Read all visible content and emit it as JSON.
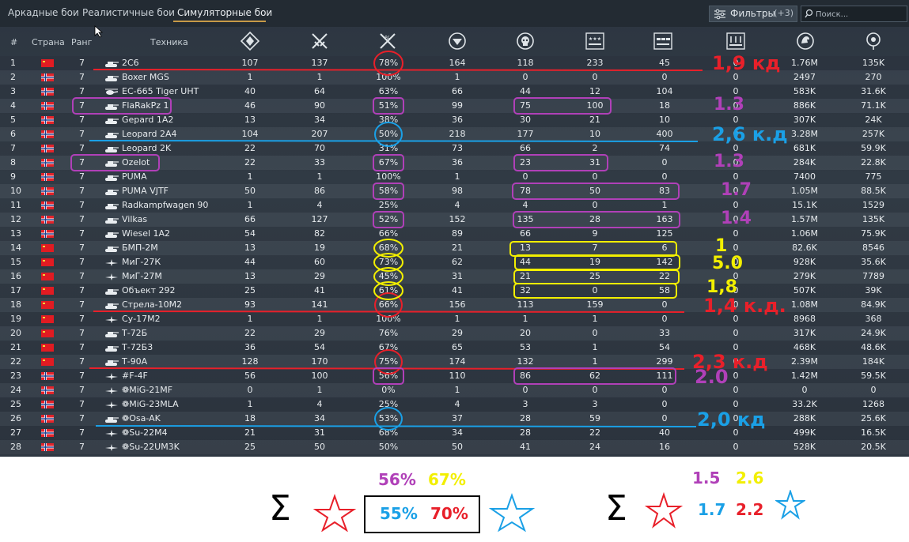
{
  "tabs": [
    {
      "label": "Аркадные бои",
      "active": false
    },
    {
      "label": "Реалистичные бои",
      "active": false
    },
    {
      "label": "Симуляторные бои",
      "active": true
    }
  ],
  "filter": {
    "label": "Фильтры",
    "count": "(+3)"
  },
  "search": {
    "placeholder": "Поиск..."
  },
  "columns": {
    "num": "#",
    "country": "Страна",
    "rank": "Ранг",
    "vehicle": "Техника"
  },
  "stat_icons": [
    "battles-icon",
    "victories-icon",
    "win-rate-icon",
    "respawns-icon",
    "deaths-icon",
    "air-kills-icon",
    "ground-kills-icon",
    "naval-kills-icon",
    "experience-icon",
    "silver-lions-icon"
  ],
  "colors": {
    "red": "#e8202a",
    "blue": "#1aa0e6",
    "purple": "#b040b8",
    "yellow": "#f2ef00",
    "flag_red": "#e11b22",
    "flag_nor": "#e3242b"
  },
  "rows": [
    {
      "n": "1",
      "flag": "ussr",
      "rank": "7",
      "type": "tank",
      "name": "2С6",
      "v": [
        "107",
        "137",
        "78%",
        "164",
        "118",
        "233",
        "45",
        "0",
        "1.76M",
        "135K"
      ]
    },
    {
      "n": "2",
      "flag": "nor",
      "rank": "7",
      "type": "tank",
      "name": "Boxer MGS",
      "v": [
        "1",
        "1",
        "100%",
        "1",
        "0",
        "0",
        "0",
        "0",
        "2497",
        "270"
      ]
    },
    {
      "n": "3",
      "flag": "nor",
      "rank": "7",
      "type": "heli",
      "name": "EC-665 Tiger UHT",
      "v": [
        "40",
        "64",
        "63%",
        "66",
        "44",
        "12",
        "104",
        "0",
        "583K",
        "31.6K"
      ]
    },
    {
      "n": "4",
      "flag": "nor",
      "rank": "7",
      "type": "tank",
      "name": "FlaRakPz 1",
      "v": [
        "46",
        "90",
        "51%",
        "99",
        "75",
        "100",
        "18",
        "0",
        "886K",
        "71.1K"
      ]
    },
    {
      "n": "5",
      "flag": "nor",
      "rank": "7",
      "type": "tank",
      "name": "Gepard 1A2",
      "v": [
        "13",
        "34",
        "38%",
        "36",
        "30",
        "21",
        "10",
        "0",
        "307K",
        "24K"
      ]
    },
    {
      "n": "6",
      "flag": "nor",
      "rank": "7",
      "type": "tank",
      "name": "Leopard 2A4",
      "v": [
        "104",
        "207",
        "50%",
        "218",
        "177",
        "10",
        "400",
        "0",
        "3.28M",
        "257K"
      ]
    },
    {
      "n": "7",
      "flag": "nor",
      "rank": "7",
      "type": "tank",
      "name": "Leopard 2K",
      "v": [
        "22",
        "70",
        "31%",
        "73",
        "66",
        "2",
        "74",
        "0",
        "681K",
        "59.9K"
      ]
    },
    {
      "n": "8",
      "flag": "nor",
      "rank": "7",
      "type": "tank",
      "name": "Ozelot",
      "v": [
        "22",
        "33",
        "67%",
        "36",
        "23",
        "31",
        "0",
        "0",
        "284K",
        "22.8K"
      ]
    },
    {
      "n": "9",
      "flag": "nor",
      "rank": "7",
      "type": "tank",
      "name": "PUMA",
      "v": [
        "1",
        "1",
        "100%",
        "1",
        "0",
        "0",
        "0",
        "0",
        "7400",
        "775"
      ]
    },
    {
      "n": "10",
      "flag": "nor",
      "rank": "7",
      "type": "tank",
      "name": "PUMA VJTF",
      "v": [
        "50",
        "86",
        "58%",
        "98",
        "78",
        "50",
        "83",
        "0",
        "1.05M",
        "88.5K"
      ]
    },
    {
      "n": "11",
      "flag": "nor",
      "rank": "7",
      "type": "tank",
      "name": "Radkampfwagen 90",
      "v": [
        "1",
        "4",
        "25%",
        "4",
        "4",
        "0",
        "1",
        "0",
        "15.1K",
        "1529"
      ]
    },
    {
      "n": "12",
      "flag": "nor",
      "rank": "7",
      "type": "tank",
      "name": "Vilkas",
      "v": [
        "66",
        "127",
        "52%",
        "152",
        "135",
        "28",
        "163",
        "0",
        "1.57M",
        "135K"
      ]
    },
    {
      "n": "13",
      "flag": "nor",
      "rank": "7",
      "type": "tank",
      "name": "Wiesel 1A2",
      "v": [
        "54",
        "82",
        "66%",
        "89",
        "66",
        "9",
        "125",
        "0",
        "1.06M",
        "75.9K"
      ]
    },
    {
      "n": "14",
      "flag": "ussr",
      "rank": "7",
      "type": "tank",
      "name": "БМП-2М",
      "v": [
        "13",
        "19",
        "68%",
        "21",
        "13",
        "7",
        "6",
        "0",
        "82.6K",
        "8546"
      ]
    },
    {
      "n": "15",
      "flag": "ussr",
      "rank": "7",
      "type": "plane",
      "name": "МиГ-27К",
      "v": [
        "44",
        "60",
        "73%",
        "62",
        "44",
        "19",
        "142",
        "0",
        "928K",
        "35.6K"
      ]
    },
    {
      "n": "16",
      "flag": "ussr",
      "rank": "7",
      "type": "plane",
      "name": "МиГ-27М",
      "v": [
        "13",
        "29",
        "45%",
        "31",
        "21",
        "25",
        "22",
        "0",
        "279K",
        "7789"
      ]
    },
    {
      "n": "17",
      "flag": "ussr",
      "rank": "7",
      "type": "tank",
      "name": "Объект 292",
      "v": [
        "25",
        "41",
        "61%",
        "41",
        "32",
        "0",
        "58",
        "0",
        "507K",
        "39K"
      ]
    },
    {
      "n": "18",
      "flag": "ussr",
      "rank": "7",
      "type": "tank",
      "name": "Стрела-10М2",
      "v": [
        "93",
        "141",
        "66%",
        "156",
        "113",
        "159",
        "0",
        "0",
        "1.08M",
        "84.9K"
      ]
    },
    {
      "n": "19",
      "flag": "ussr",
      "rank": "7",
      "type": "plane",
      "name": "Су-17М2",
      "v": [
        "1",
        "1",
        "100%",
        "1",
        "1",
        "1",
        "0",
        "0",
        "8968",
        "368"
      ]
    },
    {
      "n": "20",
      "flag": "ussr",
      "rank": "7",
      "type": "tank",
      "name": "Т-72Б",
      "v": [
        "22",
        "29",
        "76%",
        "29",
        "20",
        "0",
        "33",
        "0",
        "317K",
        "24.9K"
      ]
    },
    {
      "n": "21",
      "flag": "ussr",
      "rank": "7",
      "type": "tank",
      "name": "Т-72Б3",
      "v": [
        "36",
        "54",
        "67%",
        "65",
        "53",
        "1",
        "54",
        "0",
        "468K",
        "48.6K"
      ]
    },
    {
      "n": "22",
      "flag": "ussr",
      "rank": "7",
      "type": "tank",
      "name": "Т-90А",
      "v": [
        "128",
        "170",
        "75%",
        "174",
        "132",
        "1",
        "299",
        "0",
        "2.39M",
        "184K"
      ]
    },
    {
      "n": "23",
      "flag": "nor",
      "rank": "7",
      "type": "plane",
      "name": "#F-4F",
      "v": [
        "56",
        "100",
        "56%",
        "110",
        "86",
        "62",
        "111",
        "0",
        "1.42M",
        "59.5K"
      ]
    },
    {
      "n": "24",
      "flag": "nor",
      "rank": "7",
      "type": "plane",
      "name": "❁MiG-21MF",
      "v": [
        "0",
        "1",
        "0%",
        "1",
        "0",
        "0",
        "0",
        "0",
        "0",
        "0"
      ]
    },
    {
      "n": "25",
      "flag": "nor",
      "rank": "7",
      "type": "plane",
      "name": "❁MiG-23MLA",
      "v": [
        "1",
        "4",
        "25%",
        "4",
        "3",
        "3",
        "0",
        "0",
        "33.2K",
        "1268"
      ]
    },
    {
      "n": "26",
      "flag": "nor",
      "rank": "7",
      "type": "tank",
      "name": "❁Osa-AK",
      "v": [
        "18",
        "34",
        "53%",
        "37",
        "28",
        "59",
        "0",
        "0",
        "288K",
        "25.6K"
      ]
    },
    {
      "n": "27",
      "flag": "nor",
      "rank": "7",
      "type": "plane",
      "name": "❁Su-22M4",
      "v": [
        "21",
        "31",
        "68%",
        "34",
        "28",
        "22",
        "40",
        "0",
        "499K",
        "16.5K"
      ]
    },
    {
      "n": "28",
      "flag": "nor",
      "rank": "7",
      "type": "plane",
      "name": "❁Su-22UM3K",
      "v": [
        "25",
        "50",
        "50%",
        "50",
        "41",
        "24",
        "16",
        "0",
        "528K",
        "20.5K"
      ]
    }
  ],
  "annotations": [
    {
      "text": "1,9 кд",
      "color": "red"
    },
    {
      "text": "1.3",
      "color": "purple"
    },
    {
      "text": "2,6 к.д",
      "color": "blue"
    },
    {
      "text": "1.3",
      "color": "purple"
    },
    {
      "text": "1.7",
      "color": "purple"
    },
    {
      "text": "1.4",
      "color": "purple"
    },
    {
      "text": "1",
      "color": "yellow"
    },
    {
      "text": "5.0",
      "color": "yellow"
    },
    {
      "text": "1,8",
      "color": "yellow"
    },
    {
      "text": "1,4 к.д.",
      "color": "red"
    },
    {
      "text": "2,3 к.д",
      "color": "red"
    },
    {
      "text": "2.0",
      "color": "purple"
    },
    {
      "text": "2,0 кд",
      "color": "blue"
    }
  ],
  "summary": {
    "left_top_purple": "56%",
    "left_top_yellow": "67%",
    "box_blue": "55%",
    "box_red": "70%",
    "right_top_purple": "1.5",
    "right_top_yellow": "2.6",
    "right_blue": "1.7",
    "right_red": "2.2",
    "sigma": "Σ"
  }
}
